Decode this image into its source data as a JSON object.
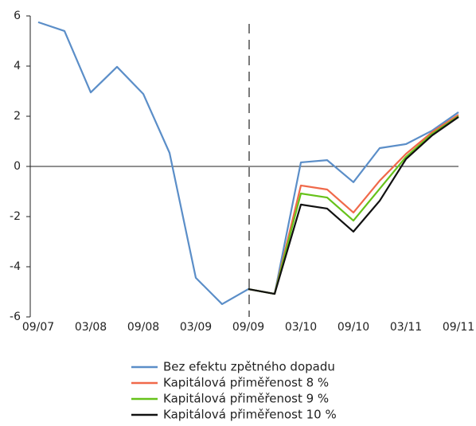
{
  "chart_data": {
    "type": "line",
    "categories": [
      "09/07",
      null,
      "03/08",
      null,
      "09/08",
      null,
      "03/09",
      null,
      "09/09",
      null,
      "03/10",
      null,
      "09/10",
      null,
      "03/11",
      null,
      "09/11"
    ],
    "series": [
      {
        "name": "Bez efektu zpětného dopadu",
        "color": "#5b8ec8",
        "values": [
          5.75,
          5.4,
          2.95,
          3.97,
          2.89,
          0.54,
          -4.44,
          -5.49,
          -4.89,
          -5.08,
          0.16,
          0.25,
          -0.63,
          0.73,
          0.89,
          1.43,
          2.16
        ]
      },
      {
        "name": "Kapitálová přiměřenost 8 %",
        "color": "#f0694a",
        "values": [
          null,
          null,
          null,
          null,
          null,
          null,
          null,
          null,
          -4.89,
          -5.08,
          -0.76,
          -0.92,
          -1.84,
          -0.57,
          0.5,
          1.37,
          2.06
        ]
      },
      {
        "name": "Kapitálová přiměřenost 9 %",
        "color": "#66c21a",
        "values": [
          null,
          null,
          null,
          null,
          null,
          null,
          null,
          null,
          -4.89,
          -5.08,
          -1.08,
          -1.24,
          -2.16,
          -0.89,
          0.38,
          1.3,
          2.0
        ]
      },
      {
        "name": "Kapitálová přiměřenost 10 %",
        "color": "#111111",
        "values": [
          null,
          null,
          null,
          null,
          null,
          null,
          null,
          null,
          -4.89,
          -5.08,
          -1.52,
          -1.68,
          -2.6,
          -1.37,
          0.29,
          1.24,
          1.97
        ]
      }
    ],
    "ylim": [
      -6,
      6
    ],
    "yticks": [
      -6,
      -4,
      -2,
      0,
      2,
      4,
      6
    ]
  }
}
